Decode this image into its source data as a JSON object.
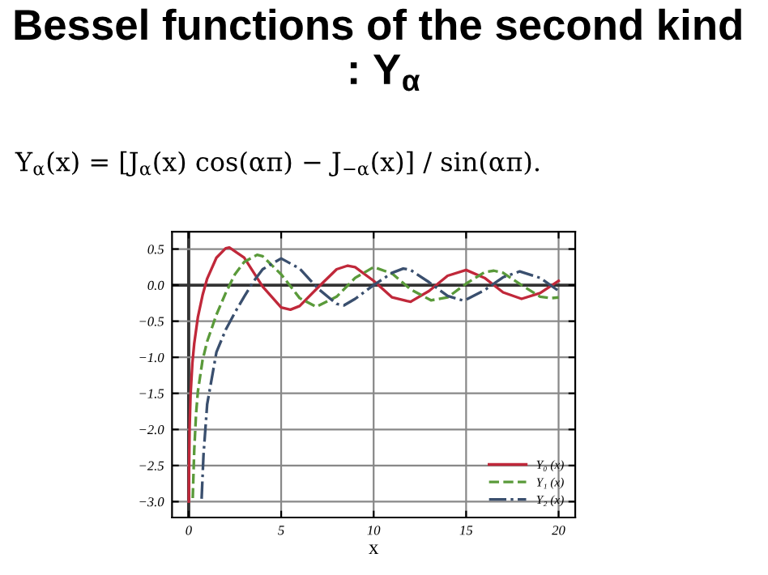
{
  "chart_data": {
    "type": "line",
    "title": "Bessel functions of the second kind  : Y$_{α}$",
    "annotations": [
      "Y$_{α}$(x) = [J$_{α}$(x) cos(απ) − J$_{−α}$(x)] / sin(απ)."
    ],
    "xlabel": "x",
    "series": [
      {
        "name": "Y₀ (x)",
        "color": "#c0283a",
        "line_style": "solid",
        "x": [
          0.01,
          0.02,
          0.05,
          0.1,
          0.2,
          0.3,
          0.5,
          0.75,
          1,
          1.5,
          2,
          2.2,
          3,
          4,
          5,
          5.5,
          6,
          7,
          8,
          8.6,
          9,
          10,
          11,
          11.8,
          12,
          13,
          14,
          15,
          16,
          17,
          18,
          19,
          20
        ],
        "values": [
          -3.0,
          -2.56,
          -1.98,
          -1.53,
          -1.08,
          -0.81,
          -0.44,
          -0.14,
          0.09,
          0.38,
          0.51,
          0.52,
          0.38,
          -0.02,
          -0.31,
          -0.34,
          -0.29,
          -0.03,
          0.22,
          0.27,
          0.25,
          0.06,
          -0.17,
          -0.22,
          -0.23,
          -0.08,
          0.13,
          0.21,
          0.1,
          -0.1,
          -0.19,
          -0.11,
          0.06
        ]
      },
      {
        "name": "Y₁ (x)",
        "color": "#5a9a3a",
        "line_style": "dashed",
        "x": [
          0.22,
          0.25,
          0.3,
          0.4,
          0.5,
          0.75,
          1,
          1.5,
          2,
          2.5,
          3,
          3.7,
          4,
          5,
          6,
          6.9,
          8,
          9,
          10,
          11,
          12,
          13.1,
          14,
          15,
          16,
          16.5,
          17,
          18,
          19,
          19.6,
          20
        ],
        "values": [
          -2.95,
          -2.7,
          -2.29,
          -1.78,
          -1.47,
          -1.04,
          -0.78,
          -0.41,
          -0.11,
          0.15,
          0.32,
          0.42,
          0.4,
          0.15,
          -0.18,
          -0.3,
          -0.16,
          0.1,
          0.25,
          0.16,
          -0.06,
          -0.21,
          -0.17,
          0.02,
          0.18,
          0.2,
          0.17,
          0.0,
          -0.16,
          -0.18,
          -0.17
        ]
      },
      {
        "name": "Y₂ (x)",
        "color": "#3a4f6e",
        "line_style": "dashdot",
        "x": [
          0.7,
          0.8,
          1,
          1.5,
          2,
          2.5,
          3,
          3.5,
          4,
          5,
          6,
          7,
          8,
          8.4,
          9,
          10,
          11,
          11.6,
          12,
          13,
          14,
          14.8,
          15,
          16,
          17,
          17.9,
          19,
          20
        ],
        "values": [
          -2.96,
          -2.36,
          -1.65,
          -0.93,
          -0.62,
          -0.38,
          -0.16,
          0.05,
          0.22,
          0.37,
          0.23,
          -0.05,
          -0.26,
          -0.28,
          -0.19,
          0.0,
          0.17,
          0.23,
          0.21,
          0.04,
          -0.15,
          -0.21,
          -0.2,
          -0.07,
          0.11,
          0.19,
          0.1,
          -0.08
        ]
      }
    ],
    "xlim": [
      -0.9,
      20.9
    ],
    "ylim": [
      -3.22,
      0.74
    ],
    "xticks": [
      0,
      5,
      10,
      15,
      20
    ],
    "yticks": [
      {
        "value": -3.0,
        "label": "−3.0"
      },
      {
        "value": -2.5,
        "label": "−2.5"
      },
      {
        "value": -2.0,
        "label": "−2.0"
      },
      {
        "value": -1.5,
        "label": "−1.5"
      },
      {
        "value": -1.0,
        "label": "−1.0"
      },
      {
        "value": -0.5,
        "label": "−0.5"
      },
      {
        "value": 0.0,
        "label": "0.0"
      },
      {
        "value": 0.5,
        "label": "0.5"
      }
    ],
    "grid": true,
    "legend": "bottom right",
    "marker": "none"
  }
}
